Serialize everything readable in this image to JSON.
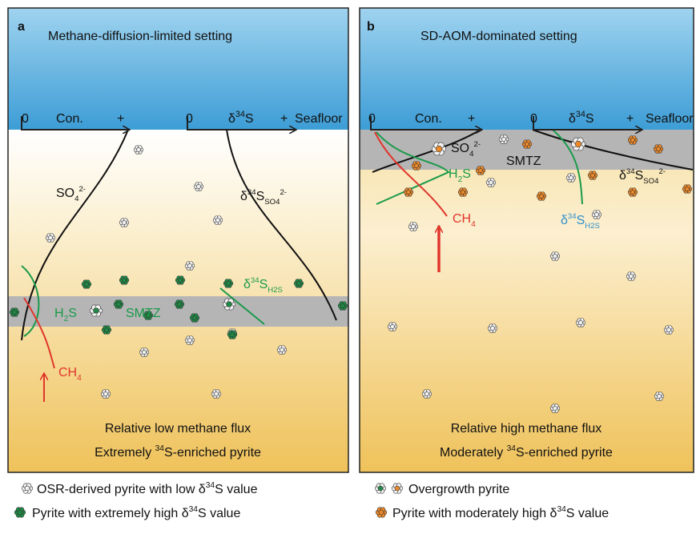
{
  "panels": [
    {
      "letter": "a",
      "title": "Methane-diffusion-limited setting",
      "con_axis": {
        "zero": "0",
        "label": "Con.",
        "plus": "+"
      },
      "d34s_axis": {
        "zero": "0",
        "delta": "δ",
        "mass": "34",
        "element": "S",
        "plus": "+",
        "seafloor": "Seafloor"
      },
      "so4": {
        "base": "SO",
        "index": "4",
        "charge": "2-"
      },
      "d34s_so4": {
        "delta": "δ",
        "mass": "34",
        "element": "S",
        "sub_base": "SO",
        "sub_index": "4",
        "sub_charge": "2-"
      },
      "d34s_h2s": {
        "delta": "δ",
        "mass": "34",
        "element": "S",
        "sub_base": "H",
        "sub_index": "2",
        "sub_end": "S"
      },
      "h2s": {
        "base": "H",
        "index": "2",
        "end": "S"
      },
      "smtz": "SMTZ",
      "ch4": {
        "base": "CH",
        "index": "4"
      },
      "flux": "Relative low methane flux",
      "pyrite": {
        "before": "Extremely ",
        "mass": "34",
        "after": "S-enriched pyrite"
      }
    },
    {
      "letter": "b",
      "title": "SD-AOM-dominated setting",
      "con_axis": {
        "zero": "0",
        "label": "Con.",
        "plus": "+"
      },
      "d34s_axis": {
        "zero": "0",
        "delta": "δ",
        "mass": "34",
        "element": "S",
        "plus": "+",
        "seafloor": "Seafloor"
      },
      "so4": {
        "base": "SO",
        "index": "4",
        "charge": "2-"
      },
      "d34s_so4": {
        "delta": "δ",
        "mass": "34",
        "element": "S",
        "sub_base": "SO",
        "sub_index": "4",
        "sub_charge": "2-"
      },
      "d34s_h2s": {
        "delta": "δ",
        "mass": "34",
        "element": "S",
        "sub_base": "H",
        "sub_index": "2",
        "sub_end": "S"
      },
      "h2s": {
        "base": "H",
        "index": "2",
        "end": "S"
      },
      "smtz": "SMTZ",
      "ch4": {
        "base": "CH",
        "index": "4"
      },
      "flux": "Relative high methane flux",
      "pyrite": {
        "before": "Moderately ",
        "mass": "34",
        "after": "S-enriched pyrite"
      }
    }
  ],
  "legend": [
    {
      "before": "OSR-derived pyrite with low ",
      "delta": "δ",
      "mass": "34",
      "after": "S value"
    },
    {
      "before": "Overgrowth pyrite"
    },
    {
      "before": "Pyrite with extremely high ",
      "delta": "δ",
      "mass": "34",
      "after": "S value"
    },
    {
      "before": "Pyrite with moderately high ",
      "delta": "δ",
      "mass": "34",
      "after": "S value"
    }
  ]
}
